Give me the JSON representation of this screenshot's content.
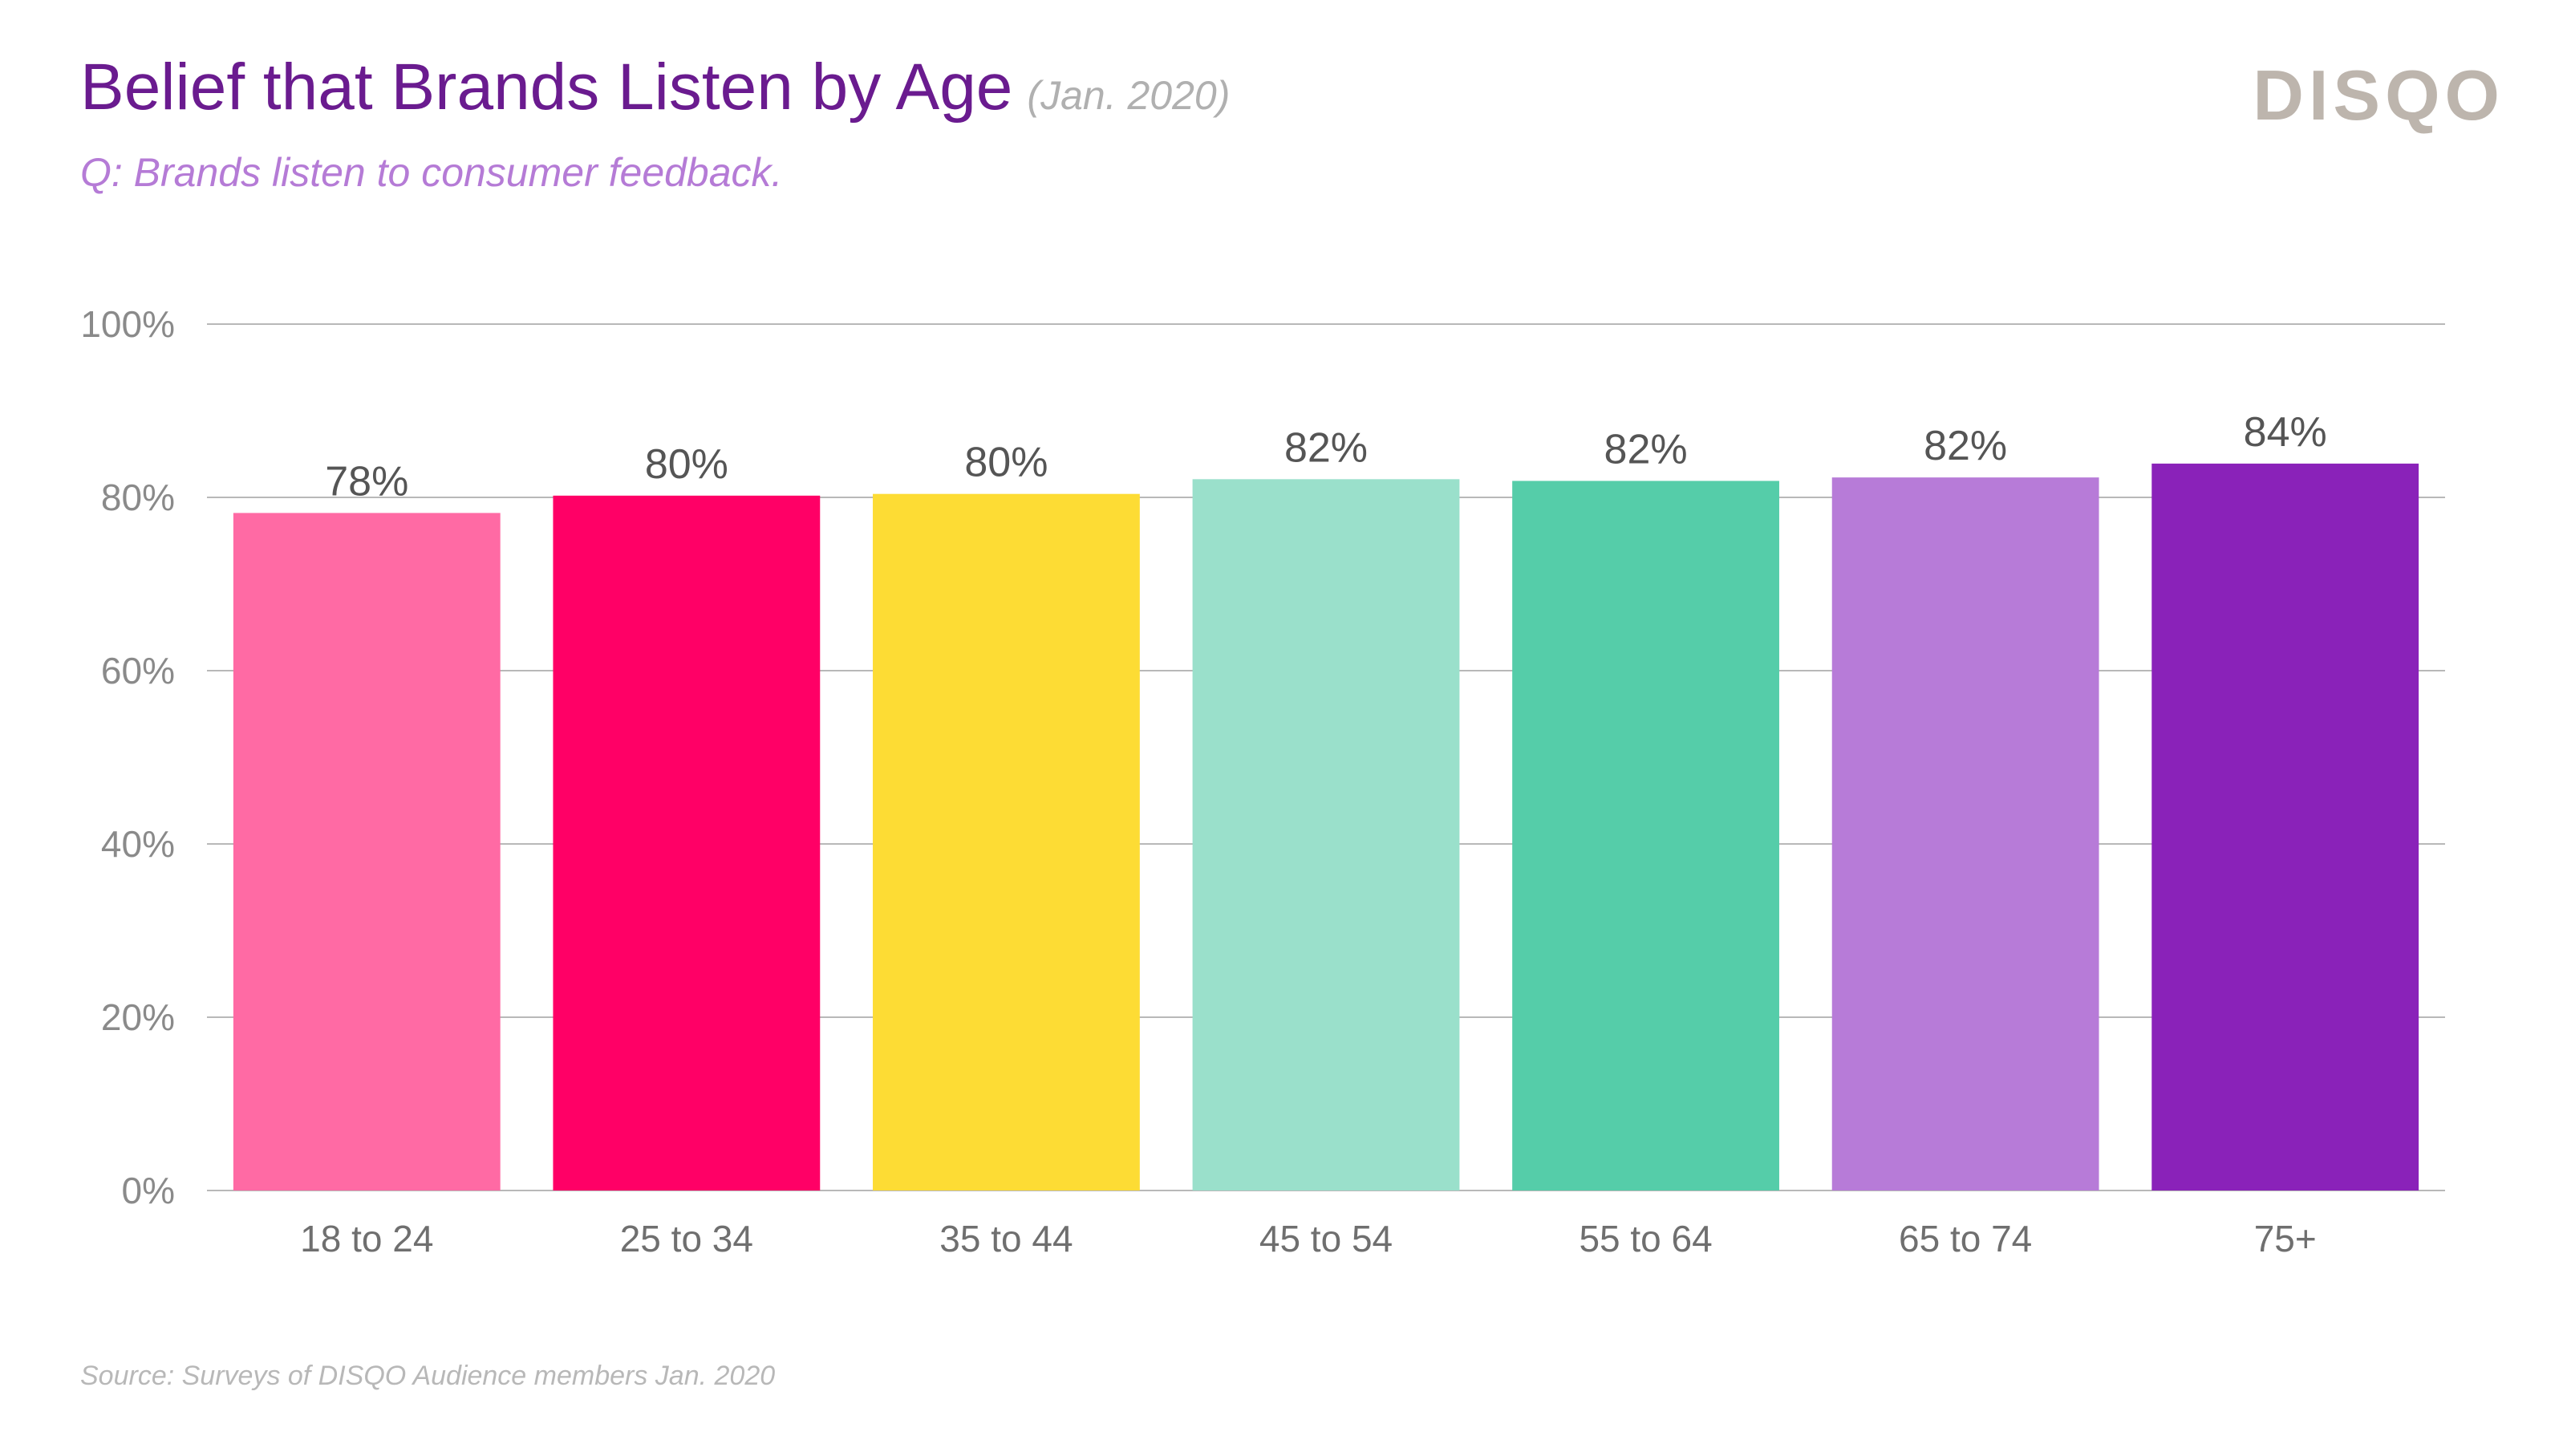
{
  "header": {
    "title": "Belief that Brands Listen by Age",
    "title_date": "(Jan. 2020)",
    "subtitle": "Q: Brands listen to consumer feedback.",
    "logo_text": "DISQO"
  },
  "footer": {
    "source": "Source: Surveys of DISQO Audience members Jan. 2020"
  },
  "colors": {
    "title": "#6a1b8f",
    "subtitle": "#b57bd6",
    "gridline": "#b8b8b8"
  },
  "chart_data": {
    "type": "bar",
    "title": "Belief that Brands Listen by Age",
    "xlabel": "",
    "ylabel": "",
    "ylim": [
      0,
      100
    ],
    "yticks": [
      0,
      20,
      40,
      60,
      80,
      100
    ],
    "ytick_labels": [
      "0%",
      "20%",
      "40%",
      "60%",
      "80%",
      "100%"
    ],
    "grid": true,
    "categories": [
      "18 to 24",
      "25 to 34",
      "35 to 44",
      "45 to 54",
      "55 to 64",
      "65 to 74",
      "75+"
    ],
    "values": [
      78.2,
      80.2,
      80.4,
      82.1,
      81.9,
      82.3,
      83.9
    ],
    "value_labels": [
      "78%",
      "80%",
      "80%",
      "82%",
      "82%",
      "82%",
      "84%"
    ],
    "bar_colors": [
      "#ff6aa4",
      "#ff0066",
      "#fddc34",
      "#9ae0cb",
      "#55cda9",
      "#b77bd8",
      "#8a22b9"
    ]
  }
}
